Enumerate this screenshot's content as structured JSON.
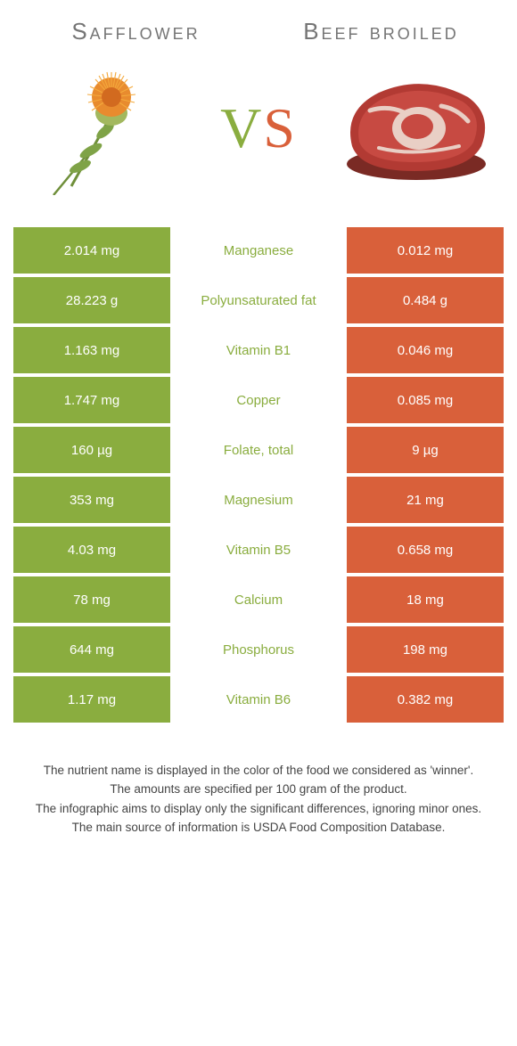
{
  "colors": {
    "left_bg": "#8aad3f",
    "right_bg": "#d9603a",
    "left_text": "#8aad3f",
    "right_text": "#d9603a",
    "title_text": "#757575"
  },
  "header": {
    "left_title": "Safflower",
    "right_title": "Beef broiled",
    "vs_v": "V",
    "vs_s": "S"
  },
  "rows": [
    {
      "left": "2.014 mg",
      "mid": "Manganese",
      "right": "0.012 mg",
      "winner": "left"
    },
    {
      "left": "28.223 g",
      "mid": "Polyunsaturated fat",
      "right": "0.484 g",
      "winner": "left"
    },
    {
      "left": "1.163 mg",
      "mid": "Vitamin B1",
      "right": "0.046 mg",
      "winner": "left"
    },
    {
      "left": "1.747 mg",
      "mid": "Copper",
      "right": "0.085 mg",
      "winner": "left"
    },
    {
      "left": "160 µg",
      "mid": "Folate, total",
      "right": "9 µg",
      "winner": "left"
    },
    {
      "left": "353 mg",
      "mid": "Magnesium",
      "right": "21 mg",
      "winner": "left"
    },
    {
      "left": "4.03 mg",
      "mid": "Vitamin B5",
      "right": "0.658 mg",
      "winner": "left"
    },
    {
      "left": "78 mg",
      "mid": "Calcium",
      "right": "18 mg",
      "winner": "left"
    },
    {
      "left": "644 mg",
      "mid": "Phosphorus",
      "right": "198 mg",
      "winner": "left"
    },
    {
      "left": "1.17 mg",
      "mid": "Vitamin B6",
      "right": "0.382 mg",
      "winner": "left"
    }
  ],
  "footnotes": [
    "The nutrient name is displayed in the color of the food we considered as 'winner'.",
    "The amounts are specified per 100 gram of the product.",
    "The infographic aims to display only the significant differences, ignoring minor ones.",
    "The main source of information is USDA Food Composition Database."
  ]
}
